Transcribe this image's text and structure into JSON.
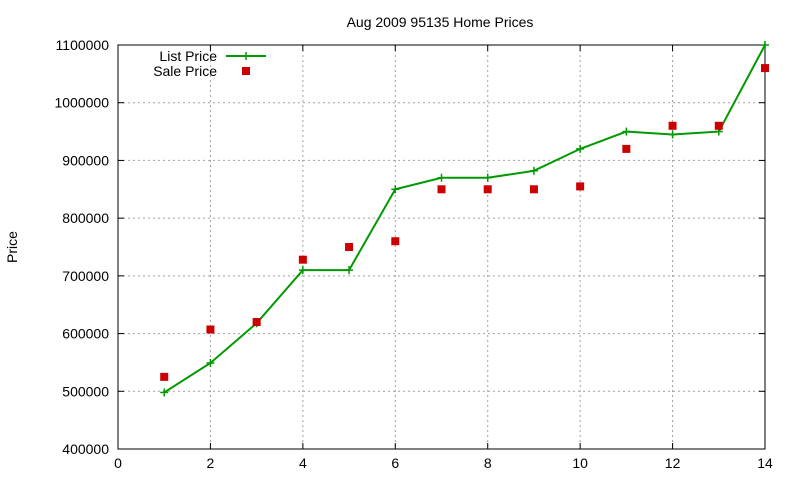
{
  "chart_data": {
    "type": "line",
    "title": "Aug 2009 95135 Home Prices",
    "xlabel": "",
    "ylabel": "Price",
    "xlim": [
      0,
      14
    ],
    "ylim": [
      400000,
      1100000
    ],
    "xticks": [
      0,
      2,
      4,
      6,
      8,
      10,
      12,
      14
    ],
    "yticks": [
      400000,
      500000,
      600000,
      700000,
      800000,
      900000,
      1000000,
      1100000
    ],
    "xtick_labels": [
      "0",
      "2",
      "4",
      "6",
      "8",
      "10",
      "12",
      "14"
    ],
    "ytick_labels": [
      "400000",
      "500000",
      "600000",
      "700000",
      "800000",
      "900000",
      "1000000",
      "1100000"
    ],
    "grid": true,
    "legend_position": "top-left",
    "series": [
      {
        "name": "List Price",
        "style": "line-with-plus-markers",
        "color": "#009900",
        "x": [
          1,
          2,
          3,
          4,
          5,
          6,
          7,
          8,
          9,
          10,
          11,
          12,
          13,
          14
        ],
        "y": [
          498000,
          549000,
          618000,
          710000,
          710000,
          850000,
          870000,
          870000,
          882000,
          920000,
          950000,
          945000,
          950000,
          1100000
        ]
      },
      {
        "name": "Sale Price",
        "style": "square-markers",
        "color": "#cc0000",
        "x": [
          1,
          2,
          3,
          4,
          5,
          6,
          7,
          8,
          9,
          10,
          11,
          12,
          13,
          14
        ],
        "y": [
          525000,
          607000,
          620000,
          728000,
          750000,
          760000,
          850000,
          850000,
          850000,
          855000,
          920000,
          960000,
          960000,
          1060000
        ]
      }
    ]
  }
}
